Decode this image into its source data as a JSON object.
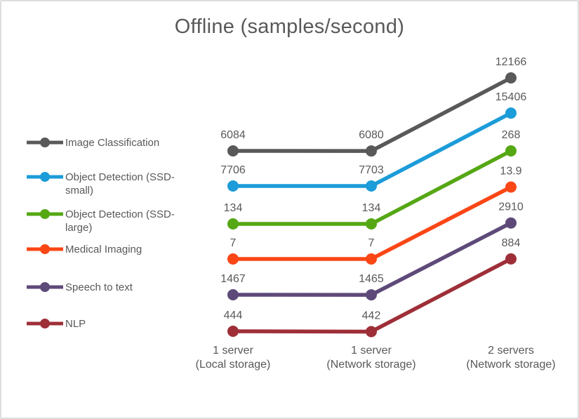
{
  "frame": {
    "background": "#FFFFFF",
    "border_color": "#DEDEDE"
  },
  "chart_data": {
    "type": "line",
    "title": "Offline (samples/second)",
    "title_color": "#595959",
    "text_color": "#595959",
    "grid": false,
    "axes_visible": false,
    "data_labels": true,
    "legend_position": "left",
    "categories": [
      [
        "1 server",
        "(Local storage)"
      ],
      [
        "1 server",
        "(Network storage)"
      ],
      [
        "2 servers",
        "(Network storage)"
      ]
    ],
    "series": [
      {
        "name": "Image Classification",
        "color": "#595959",
        "values": [
          6084,
          6080,
          12166
        ]
      },
      {
        "name": "Object Detection (SSD-small)",
        "color": "#1C9CD8",
        "values": [
          7706,
          7703,
          15406
        ]
      },
      {
        "name": "Object Detection (SSD-large)",
        "color": "#55A714",
        "values": [
          134,
          134,
          268
        ]
      },
      {
        "name": "Medical Imaging",
        "color": "#FB4616",
        "values": [
          7,
          7,
          13.9
        ]
      },
      {
        "name": "Speech to text",
        "color": "#5E4A79",
        "values": [
          1467,
          1465,
          2910
        ]
      },
      {
        "name": "NLP",
        "color": "#9E2F38",
        "values": [
          444,
          442,
          884
        ]
      }
    ]
  }
}
